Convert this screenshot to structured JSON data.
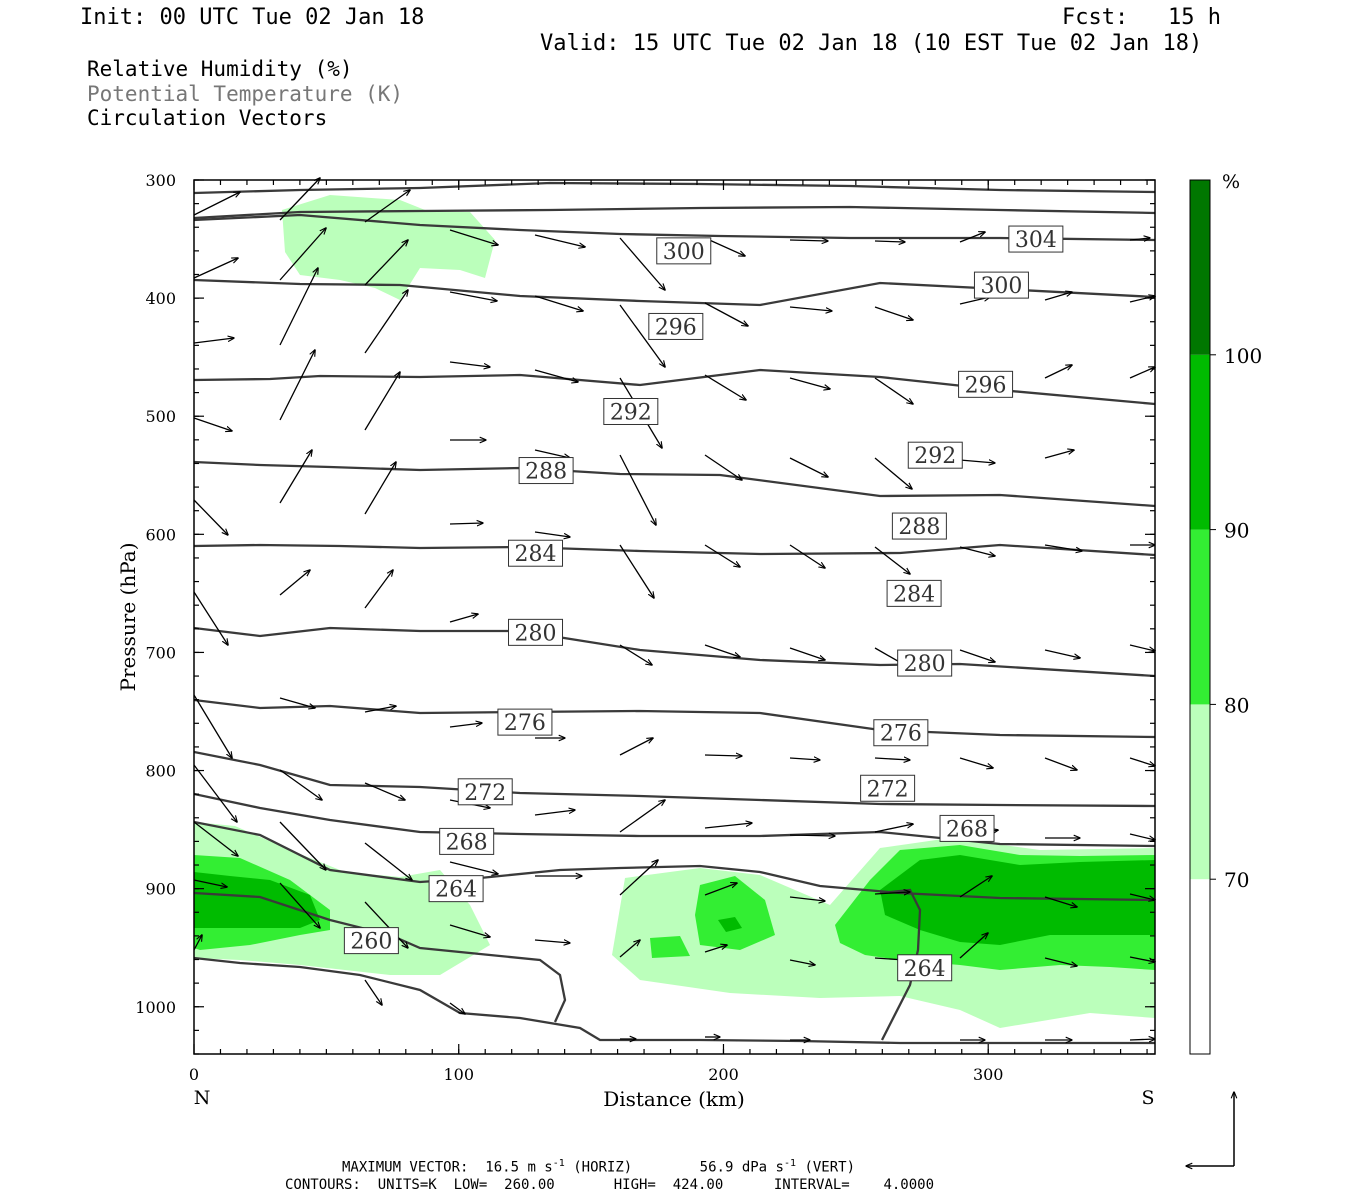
{
  "header": {
    "init": "Init: 00 UTC Tue 02 Jan 18",
    "fcst": "Fcst:   15 h",
    "valid": "Valid: 15 UTC Tue 02 Jan 18 (10 EST Tue 02 Jan 18)"
  },
  "legend": {
    "line1": "Relative Humidity (%)",
    "line2": "Potential Temperature (K)",
    "line3": "Circulation Vectors"
  },
  "footer": {
    "max_vector_label": "MAXIMUM VECTOR:",
    "max_horiz": "16.5 m s",
    "horiz_tag": "(HORIZ)",
    "max_vert": "56.9 dPa s",
    "vert_tag": "(VERT)",
    "exponent": "-1",
    "contours_line": "CONTOURS:  UNITS=K  LOW=  260.00       HIGH=  424.00      INTERVAL=    4.0000"
  },
  "colors": {
    "rh70": "#bbffbb",
    "rh80": "#33ee33",
    "rh90": "#00bb00",
    "rh100": "#007700",
    "contour": "#3a3a3a"
  },
  "chart_data": {
    "type": "cross-section",
    "xlabel": "Distance (km)",
    "ylabel": "Pressure (hPa)",
    "xlim": [
      0,
      363
    ],
    "ylim": [
      1040,
      300
    ],
    "x_ticks": [
      0,
      100,
      200,
      300
    ],
    "y_ticks": [
      300,
      400,
      500,
      600,
      700,
      800,
      900,
      1000
    ],
    "x_end_labels": {
      "left": "N",
      "right": "S"
    },
    "colorbar": {
      "unit": "%",
      "levels": [
        70,
        80,
        90,
        100
      ],
      "colors": [
        "#ffffff",
        "#bbffbb",
        "#33ee33",
        "#00bb00",
        "#007700"
      ]
    },
    "theta_labels": [
      {
        "text": "304",
        "x": 318,
        "p": 350
      },
      {
        "text": "300",
        "x": 185,
        "p": 360
      },
      {
        "text": "300",
        "x": 305,
        "p": 389
      },
      {
        "text": "296",
        "x": 182,
        "p": 424
      },
      {
        "text": "296",
        "x": 299,
        "p": 473
      },
      {
        "text": "292",
        "x": 165,
        "p": 496
      },
      {
        "text": "292",
        "x": 280,
        "p": 533
      },
      {
        "text": "288",
        "x": 133,
        "p": 546
      },
      {
        "text": "288",
        "x": 274,
        "p": 593
      },
      {
        "text": "284",
        "x": 129,
        "p": 616
      },
      {
        "text": "284",
        "x": 272,
        "p": 650
      },
      {
        "text": "280",
        "x": 129,
        "p": 683
      },
      {
        "text": "280",
        "x": 276,
        "p": 709
      },
      {
        "text": "276",
        "x": 125,
        "p": 759
      },
      {
        "text": "276",
        "x": 267,
        "p": 768
      },
      {
        "text": "272",
        "x": 110,
        "p": 818
      },
      {
        "text": "272",
        "x": 262,
        "p": 815
      },
      {
        "text": "268",
        "x": 103,
        "p": 860
      },
      {
        "text": "268",
        "x": 292,
        "p": 849
      },
      {
        "text": "264",
        "x": 99,
        "p": 900
      },
      {
        "text": "264",
        "x": 276,
        "p": 967
      },
      {
        "text": "260",
        "x": 67,
        "p": 944
      }
    ]
  }
}
